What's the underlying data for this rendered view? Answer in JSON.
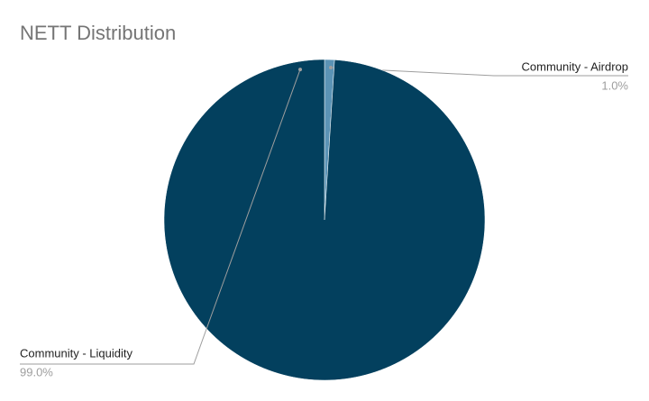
{
  "chart_data": {
    "type": "pie",
    "title": "NETT Distribution",
    "categories": [
      "Community - Airdrop",
      "Community - Liquidity"
    ],
    "values": [
      1.0,
      99.0
    ],
    "value_labels": [
      "1.0%",
      "99.0%"
    ],
    "colors": [
      "#5b93b5",
      "#03405e"
    ]
  }
}
